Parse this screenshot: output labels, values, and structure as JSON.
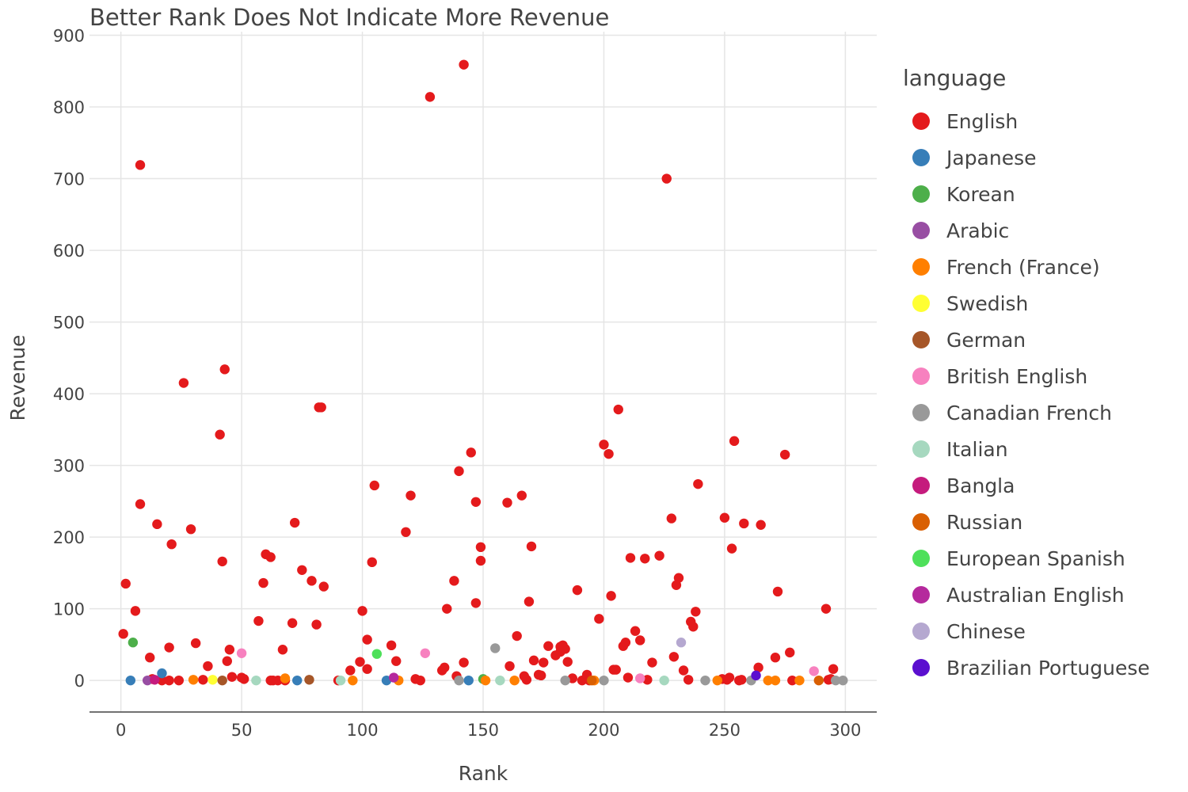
{
  "chart_data": {
    "type": "scatter",
    "title": "Better Rank Does Not Indicate More Revenue",
    "xlabel": "Rank",
    "ylabel": "Revenue",
    "xlim": [
      -13,
      313
    ],
    "ylim": [
      -44,
      905
    ],
    "xticks": [
      0,
      50,
      100,
      150,
      200,
      250,
      300
    ],
    "yticks": [
      0,
      100,
      200,
      300,
      400,
      500,
      600,
      700,
      800,
      900
    ],
    "grid": true,
    "legend": {
      "title": "language",
      "placement": "right"
    },
    "series": [
      {
        "name": "English",
        "color": "#e41a1c",
        "points": [
          [
            1,
            65
          ],
          [
            2,
            135
          ],
          [
            6,
            97
          ],
          [
            8,
            719
          ],
          [
            8,
            246
          ],
          [
            12,
            32
          ],
          [
            13,
            2
          ],
          [
            15,
            218
          ],
          [
            17,
            0
          ],
          [
            20,
            0
          ],
          [
            20,
            46
          ],
          [
            21,
            190
          ],
          [
            24,
            0
          ],
          [
            26,
            415
          ],
          [
            29,
            211
          ],
          [
            31,
            52
          ],
          [
            34,
            1
          ],
          [
            36,
            20
          ],
          [
            41,
            343
          ],
          [
            42,
            166
          ],
          [
            43,
            434
          ],
          [
            44,
            27
          ],
          [
            45,
            43
          ],
          [
            46,
            5
          ],
          [
            50,
            4
          ],
          [
            51,
            2
          ],
          [
            57,
            83
          ],
          [
            59,
            136
          ],
          [
            60,
            176
          ],
          [
            62,
            172
          ],
          [
            62,
            0
          ],
          [
            63,
            0
          ],
          [
            65,
            0
          ],
          [
            67,
            43
          ],
          [
            68,
            0
          ],
          [
            71,
            80
          ],
          [
            72,
            220
          ],
          [
            75,
            154
          ],
          [
            79,
            139
          ],
          [
            81,
            78
          ],
          [
            82,
            381
          ],
          [
            83,
            381
          ],
          [
            84,
            131
          ],
          [
            90,
            0
          ],
          [
            95,
            14
          ],
          [
            99,
            26
          ],
          [
            100,
            97
          ],
          [
            102,
            16
          ],
          [
            102,
            57
          ],
          [
            104,
            165
          ],
          [
            105,
            272
          ],
          [
            112,
            49
          ],
          [
            114,
            27
          ],
          [
            118,
            207
          ],
          [
            120,
            258
          ],
          [
            122,
            2
          ],
          [
            124,
            0
          ],
          [
            133,
            14
          ],
          [
            134,
            18
          ],
          [
            135,
            100
          ],
          [
            138,
            139
          ],
          [
            139,
            6
          ],
          [
            140,
            292
          ],
          [
            142,
            25
          ],
          [
            142,
            859
          ],
          [
            145,
            318
          ],
          [
            147,
            249
          ],
          [
            147,
            108
          ],
          [
            149,
            186
          ],
          [
            149,
            167
          ],
          [
            128,
            814
          ],
          [
            160,
            248
          ],
          [
            161,
            20
          ],
          [
            164,
            62
          ],
          [
            166,
            258
          ],
          [
            167,
            6
          ],
          [
            168,
            1
          ],
          [
            169,
            110
          ],
          [
            170,
            187
          ],
          [
            171,
            28
          ],
          [
            173,
            8
          ],
          [
            174,
            7
          ],
          [
            175,
            25
          ],
          [
            177,
            48
          ],
          [
            180,
            35
          ],
          [
            182,
            47
          ],
          [
            182,
            40
          ],
          [
            183,
            49
          ],
          [
            184,
            44
          ],
          [
            185,
            26
          ],
          [
            187,
            3
          ],
          [
            189,
            126
          ],
          [
            191,
            0
          ],
          [
            193,
            8
          ],
          [
            194,
            0
          ],
          [
            198,
            86
          ],
          [
            200,
            329
          ],
          [
            202,
            316
          ],
          [
            203,
            118
          ],
          [
            204,
            15
          ],
          [
            205,
            15
          ],
          [
            206,
            378
          ],
          [
            208,
            48
          ],
          [
            209,
            53
          ],
          [
            210,
            4
          ],
          [
            211,
            171
          ],
          [
            213,
            69
          ],
          [
            215,
            56
          ],
          [
            217,
            170
          ],
          [
            218,
            1
          ],
          [
            220,
            25
          ],
          [
            223,
            174
          ],
          [
            226,
            700
          ],
          [
            228,
            226
          ],
          [
            229,
            33
          ],
          [
            230,
            133
          ],
          [
            231,
            143
          ],
          [
            233,
            14
          ],
          [
            235,
            1
          ],
          [
            236,
            82
          ],
          [
            237,
            75
          ],
          [
            238,
            96
          ],
          [
            239,
            274
          ],
          [
            249,
            2
          ],
          [
            250,
            227
          ],
          [
            251,
            1
          ],
          [
            252,
            4
          ],
          [
            253,
            184
          ],
          [
            254,
            334
          ],
          [
            256,
            0
          ],
          [
            257,
            1
          ],
          [
            258,
            219
          ],
          [
            264,
            18
          ],
          [
            265,
            217
          ],
          [
            271,
            32
          ],
          [
            272,
            124
          ],
          [
            275,
            315
          ],
          [
            277,
            39
          ],
          [
            278,
            0
          ],
          [
            292,
            100
          ],
          [
            293,
            1
          ],
          [
            294,
            2
          ],
          [
            295,
            16
          ]
        ]
      },
      {
        "name": "Japanese",
        "color": "#377eb8",
        "points": [
          [
            4,
            0
          ],
          [
            17,
            10
          ],
          [
            73,
            0
          ],
          [
            110,
            0
          ],
          [
            144,
            0
          ]
        ]
      },
      {
        "name": "Korean",
        "color": "#4daf4a",
        "points": [
          [
            5,
            53
          ],
          [
            150,
            2
          ]
        ]
      },
      {
        "name": "Arabic",
        "color": "#984ea3",
        "points": [
          [
            11,
            0
          ]
        ]
      },
      {
        "name": "French (France)",
        "color": "#ff7f00",
        "points": [
          [
            30,
            1
          ],
          [
            68,
            3
          ],
          [
            96,
            0
          ],
          [
            115,
            0
          ],
          [
            151,
            0
          ],
          [
            163,
            0
          ],
          [
            196,
            0
          ],
          [
            247,
            0
          ],
          [
            268,
            0
          ],
          [
            271,
            0
          ],
          [
            281,
            0
          ]
        ]
      },
      {
        "name": "Swedish",
        "color": "#ffff33",
        "points": [
          [
            38,
            1
          ]
        ]
      },
      {
        "name": "German",
        "color": "#a65628",
        "points": [
          [
            42,
            0
          ],
          [
            78,
            1
          ]
        ]
      },
      {
        "name": "British English",
        "color": "#f781bf",
        "points": [
          [
            50,
            38
          ],
          [
            126,
            38
          ],
          [
            215,
            3
          ],
          [
            287,
            13
          ]
        ]
      },
      {
        "name": "Canadian French",
        "color": "#999999",
        "points": [
          [
            140,
            0
          ],
          [
            155,
            45
          ],
          [
            184,
            0
          ],
          [
            200,
            0
          ],
          [
            242,
            0
          ],
          [
            261,
            0
          ],
          [
            296,
            0
          ],
          [
            299,
            0
          ]
        ]
      },
      {
        "name": "Italian",
        "color": "#a6d8bf",
        "points": [
          [
            56,
            0
          ],
          [
            91,
            0
          ],
          [
            157,
            0
          ],
          [
            225,
            0
          ]
        ]
      },
      {
        "name": "Bangla",
        "color": "#c51b7d",
        "points": [
          [
            14,
            1
          ]
        ]
      },
      {
        "name": "Russian",
        "color": "#d95f02",
        "points": [
          [
            195,
            0
          ],
          [
            289,
            0
          ]
        ]
      },
      {
        "name": "European Spanish",
        "color": "#4ee05a",
        "points": [
          [
            106,
            37
          ]
        ]
      },
      {
        "name": "Australian English",
        "color": "#b5299d",
        "points": [
          [
            113,
            4
          ]
        ]
      },
      {
        "name": "Chinese",
        "color": "#b5a8d0",
        "points": [
          [
            232,
            53
          ]
        ]
      },
      {
        "name": "Brazilian Portuguese",
        "color": "#5b0fcf",
        "points": [
          [
            263,
            7
          ]
        ]
      }
    ]
  }
}
